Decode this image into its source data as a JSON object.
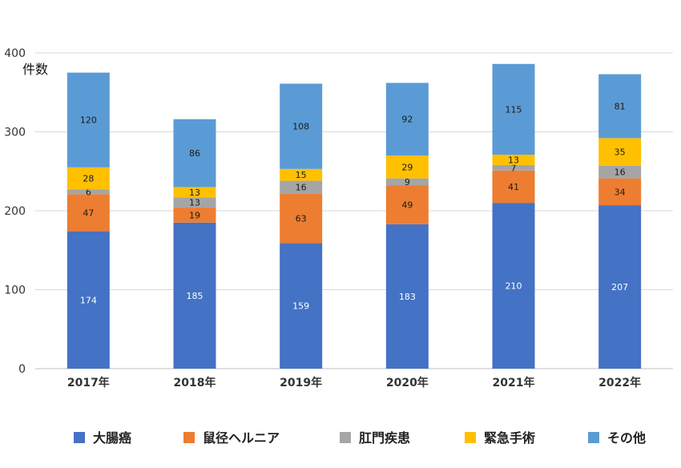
{
  "chart_data": {
    "type": "bar",
    "stacked": true,
    "ylabel": "件数",
    "ylim": [
      0,
      400
    ],
    "yticks": [
      0,
      100,
      200,
      300,
      400
    ],
    "categories": [
      "2017年",
      "2018年",
      "2019年",
      "2020年",
      "2021年",
      "2022年"
    ],
    "series": [
      {
        "name": "大腸癌",
        "color": "#4472c4",
        "values": [
          174,
          185,
          159,
          183,
          210,
          207
        ]
      },
      {
        "name": "鼠径ヘルニア",
        "color": "#ed7d31",
        "values": [
          47,
          19,
          63,
          49,
          41,
          34
        ]
      },
      {
        "name": "肛門疾患",
        "color": "#a5a5a5",
        "values": [
          6,
          13,
          16,
          9,
          7,
          16
        ]
      },
      {
        "name": "緊急手術",
        "color": "#ffc000",
        "values": [
          28,
          13,
          15,
          29,
          13,
          35
        ]
      },
      {
        "name": "その他",
        "color": "#5b9bd5",
        "values": [
          120,
          86,
          108,
          92,
          115,
          81
        ]
      }
    ],
    "grid": true,
    "legend": "bottom"
  }
}
